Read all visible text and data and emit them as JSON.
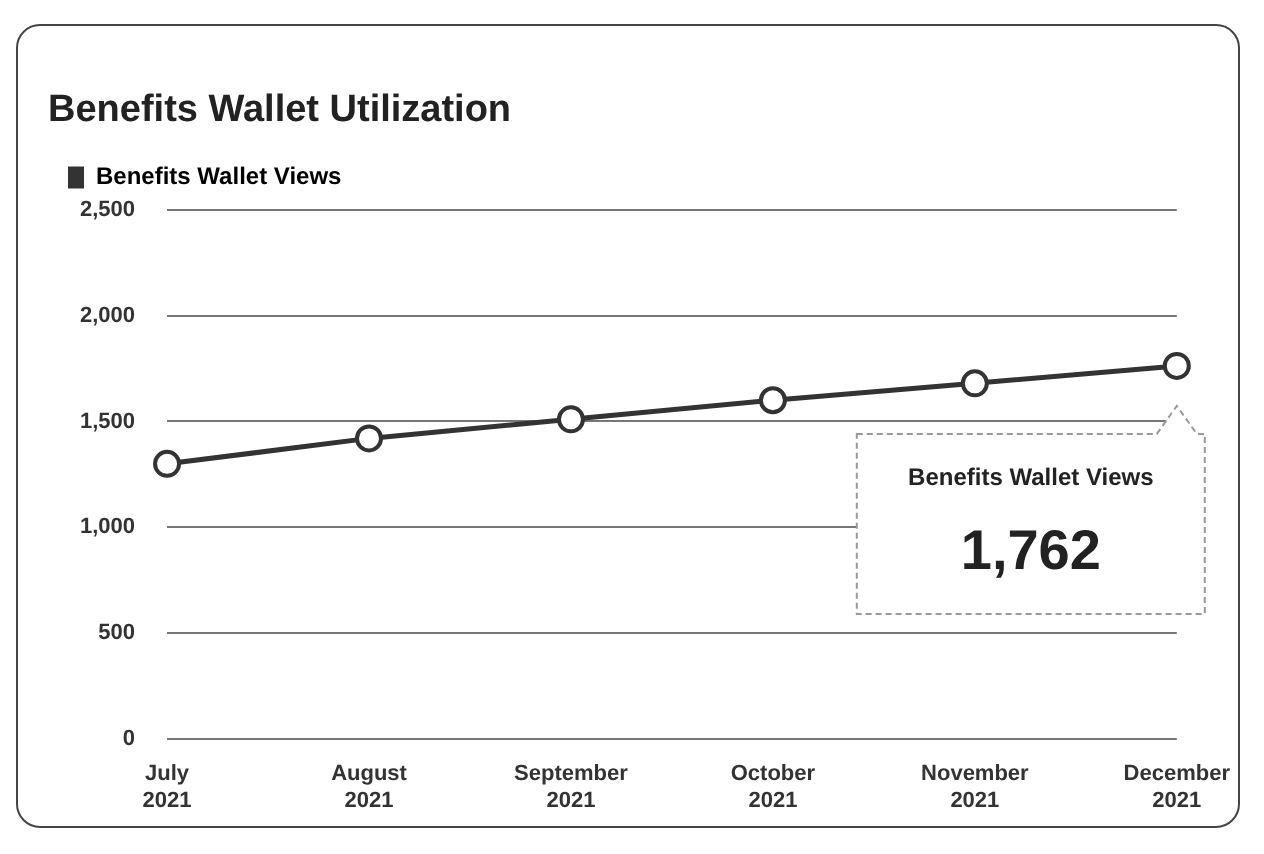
{
  "chart_data": {
    "type": "line",
    "title": "Benefits Wallet Utilization",
    "categories": [
      "July 2021",
      "August 2021",
      "September 2021",
      "October 2021",
      "November 2021",
      "December 2021"
    ],
    "series": [
      {
        "name": "Benefits Wallet Views",
        "color": "#333333",
        "values": [
          1300,
          1420,
          1510,
          1600,
          1680,
          1762
        ]
      }
    ],
    "ylim": [
      0,
      2500
    ],
    "yticks": [
      0,
      500,
      {
        "value": 1000,
        "label": "1,000"
      },
      {
        "value": 1500,
        "label": "1,500"
      },
      {
        "value": 2000,
        "label": "2,000"
      },
      {
        "value": 2500,
        "label": "2,500"
      }
    ],
    "grid": "y",
    "legend": "top left",
    "marker": "circle",
    "annotations": [
      "1,762"
    ]
  }
}
